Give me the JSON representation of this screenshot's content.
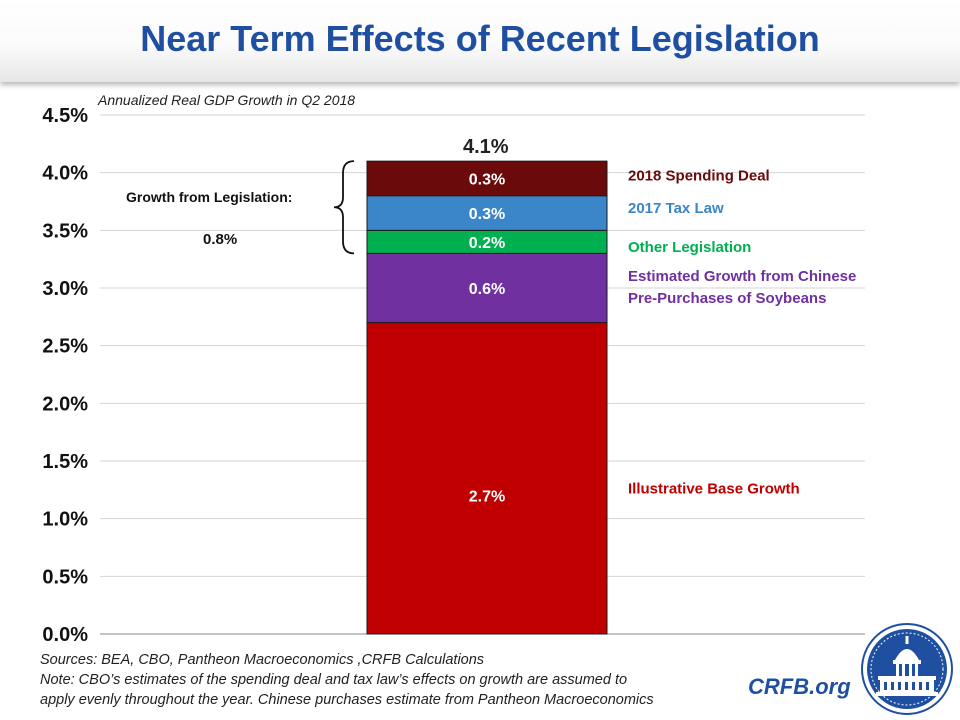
{
  "title": "Near Term Effects of Recent Legislation",
  "colors": {
    "title": "#1f4fa0",
    "base": "#c00000",
    "soybeans": "#7030a0",
    "other": "#00b050",
    "tax": "#3a86c8",
    "spending": "#6b0a0a"
  },
  "chart_data": {
    "type": "bar",
    "subtype": "stacked",
    "title": "Annualized Real GDP Growth in Q2 2018",
    "xlabel": "",
    "ylabel": "",
    "ylim": [
      0,
      4.5
    ],
    "yticks": [
      0,
      0.5,
      1.0,
      1.5,
      2.0,
      2.5,
      3.0,
      3.5,
      4.0,
      4.5
    ],
    "ytick_labels": [
      "0.0%",
      "0.5%",
      "1.0%",
      "1.5%",
      "2.0%",
      "2.5%",
      "3.0%",
      "3.5%",
      "4.0%",
      "4.5%"
    ],
    "grid": true,
    "total": 4.1,
    "total_label": "4.1%",
    "series": [
      {
        "name": "Illustrative Base Growth",
        "value": 2.7,
        "label": "2.7%",
        "color": "#c00000",
        "legend_lines": [
          "Illustrative Base Growth"
        ]
      },
      {
        "name": "Estimated Growth from Chinese Pre-Purchases of Soybeans",
        "value": 0.6,
        "label": "0.6%",
        "color": "#7030a0",
        "legend_lines": [
          "Estimated Growth from Chinese",
          "Pre-Purchases of Soybeans"
        ]
      },
      {
        "name": "Other Legislation",
        "value": 0.2,
        "label": "0.2%",
        "color": "#00b050",
        "legend_lines": [
          "Other Legislation"
        ]
      },
      {
        "name": "2017 Tax Law",
        "value": 0.3,
        "label": "0.3%",
        "color": "#3a86c8",
        "legend_lines": [
          "2017 Tax Law"
        ]
      },
      {
        "name": "2018 Spending Deal",
        "value": 0.3,
        "label": "0.3%",
        "color": "#6b0a0a",
        "legend_lines": [
          "2018 Spending Deal"
        ]
      }
    ],
    "annotation": {
      "text": "Growth from Legislation:",
      "value": "0.8%"
    }
  },
  "notes": {
    "sources": "Sources: BEA, CBO, Pantheon Macroeconomics ,CRFB Calculations",
    "note_line1": "Note: CBO’s estimates of the spending deal and tax law’s effects on growth are assumed to",
    "note_line2": "apply evenly throughout the year. Chinese purchases estimate from Pantheon Macroeconomics"
  },
  "site": "CRFB.org",
  "logo_icon": "capitol-seal-icon"
}
